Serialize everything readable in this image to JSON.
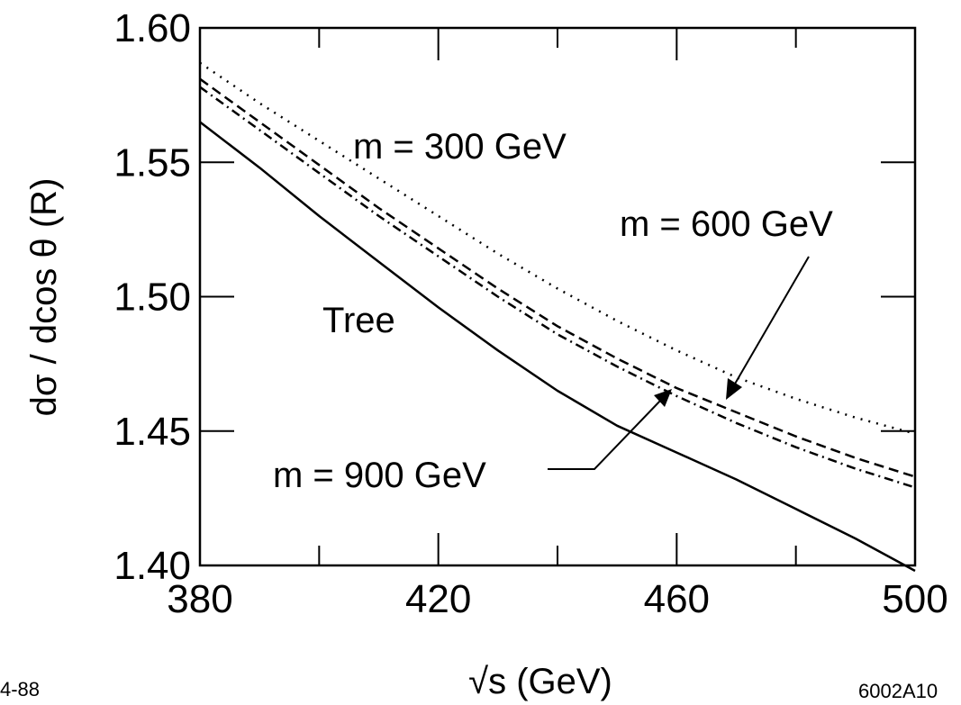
{
  "chart_data": {
    "type": "line",
    "xlabel": "√s    (GeV)",
    "ylabel": "dσ / dcos θ    (R)",
    "xlim": [
      380,
      500
    ],
    "ylim": [
      1.4,
      1.6
    ],
    "x_ticks": [
      "380",
      "420",
      "460",
      "500"
    ],
    "y_ticks": [
      "1.40",
      "1.45",
      "1.50",
      "1.55",
      "1.60"
    ],
    "grid": false,
    "series": [
      {
        "name": "Tree",
        "style": "solid",
        "x": [
          380,
          390,
          400,
          410,
          420,
          430,
          440,
          450,
          460,
          470,
          480,
          490,
          500
        ],
        "y": [
          1.565,
          1.548,
          1.53,
          1.513,
          1.496,
          1.48,
          1.465,
          1.452,
          1.442,
          1.432,
          1.421,
          1.41,
          1.398
        ]
      },
      {
        "name": "m = 300 GeV",
        "style": "dotted",
        "x": [
          380,
          390,
          400,
          410,
          420,
          430,
          440,
          450,
          460,
          470,
          480,
          490,
          500
        ],
        "y": [
          1.587,
          1.572,
          1.558,
          1.544,
          1.53,
          1.516,
          1.503,
          1.491,
          1.48,
          1.47,
          1.462,
          1.455,
          1.449
        ]
      },
      {
        "name": "m = 600 GeV",
        "style": "dashed",
        "x": [
          380,
          390,
          400,
          410,
          420,
          430,
          440,
          450,
          460,
          470,
          480,
          490,
          500
        ],
        "y": [
          1.581,
          1.565,
          1.549,
          1.533,
          1.518,
          1.503,
          1.489,
          1.477,
          1.466,
          1.457,
          1.448,
          1.44,
          1.433
        ]
      },
      {
        "name": "m = 900 GeV",
        "style": "dashdot",
        "x": [
          380,
          390,
          400,
          410,
          420,
          430,
          440,
          450,
          460,
          470,
          480,
          490,
          500
        ],
        "y": [
          1.578,
          1.562,
          1.546,
          1.53,
          1.515,
          1.5,
          1.486,
          1.474,
          1.463,
          1.453,
          1.444,
          1.436,
          1.429
        ]
      }
    ],
    "annotations": {
      "label_300": "m = 300 GeV",
      "label_600": "m = 600 GeV",
      "label_900": "m = 900 GeV",
      "label_tree": "Tree"
    }
  },
  "corner_left": "4-88",
  "corner_right": "6002A10"
}
